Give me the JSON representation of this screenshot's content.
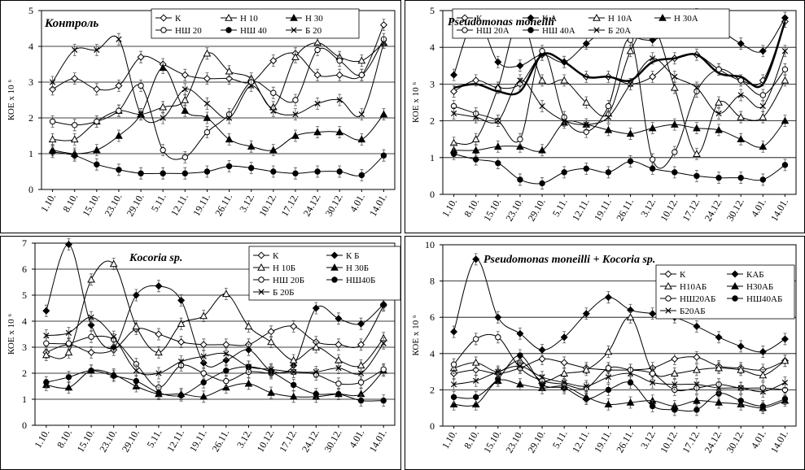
{
  "xticks": [
    "1.10.",
    "8.10.",
    "15.10.",
    "23.10.",
    "29.10.",
    "5.11.",
    "12.11.",
    "19.11.",
    "26.11.",
    "3.12.",
    "10.12.",
    "17.12.",
    "24.12.",
    "30.12.",
    "4.01.",
    "14.01."
  ],
  "ylabel": "КОЕ x 10 ⁶",
  "chart_data": [
    {
      "type": "line",
      "title": "Контроль",
      "ylabel": "КОЕ x 10 ⁶",
      "ylim": [
        0,
        5
      ],
      "yticks": [
        0,
        1,
        2,
        3,
        4,
        5
      ],
      "legend_cols": 3,
      "series": [
        {
          "name": "К",
          "marker": "diamond-open",
          "width": 1,
          "values": [
            2.8,
            3.1,
            2.8,
            2.9,
            3.7,
            3.5,
            3.2,
            3.1,
            3.1,
            3.0,
            3.6,
            3.8,
            3.2,
            3.2,
            3.2,
            4.6
          ]
        },
        {
          "name": "Н 10",
          "marker": "triangle-open",
          "width": 1,
          "values": [
            1.4,
            1.4,
            1.9,
            2.2,
            2.1,
            2.3,
            2.5,
            3.8,
            3.3,
            3.1,
            2.3,
            3.7,
            4.1,
            3.7,
            3.6,
            4.1
          ]
        },
        {
          "name": "Н 30",
          "marker": "triangle-filled",
          "width": 1,
          "values": [
            1.1,
            1.0,
            1.1,
            1.5,
            2.1,
            3.4,
            2.2,
            2.0,
            1.4,
            1.2,
            1.1,
            1.5,
            1.6,
            1.6,
            1.4,
            2.1
          ]
        },
        {
          "name": "НШ 20",
          "marker": "circle-open",
          "width": 1,
          "values": [
            1.9,
            1.8,
            1.9,
            2.2,
            2.9,
            1.1,
            0.9,
            1.6,
            2.1,
            3.0,
            2.7,
            2.5,
            3.9,
            3.6,
            3.2,
            4.2
          ]
        },
        {
          "name": "НШ 40",
          "marker": "circle-filled",
          "width": 1,
          "values": [
            1.05,
            0.95,
            0.7,
            0.55,
            0.45,
            0.45,
            0.45,
            0.5,
            0.65,
            0.6,
            0.5,
            0.45,
            0.5,
            0.5,
            0.4,
            0.95
          ]
        },
        {
          "name": "Б 20",
          "marker": "x",
          "width": 1,
          "values": [
            3.0,
            3.9,
            3.9,
            4.2,
            2.1,
            2.0,
            2.8,
            2.4,
            2.0,
            2.9,
            2.2,
            2.1,
            2.4,
            2.5,
            2.1,
            4.1
          ]
        }
      ]
    },
    {
      "type": "line",
      "title": "Pseudomonas moneilli",
      "ylabel": "КОЕ x 10 ⁶",
      "ylim": [
        0,
        5
      ],
      "yticks": [
        0,
        1,
        2,
        3,
        4,
        5
      ],
      "legend_cols": 4,
      "series": [
        {
          "name": "К",
          "marker": "diamond-open",
          "width": 1,
          "values": [
            2.8,
            3.1,
            2.9,
            3.0,
            3.8,
            3.6,
            3.2,
            3.2,
            3.0,
            3.2,
            3.7,
            3.8,
            3.4,
            3.1,
            3.1,
            4.7
          ]
        },
        {
          "name": "К А",
          "marker": "diamond-filled",
          "width": 1,
          "values": [
            3.25,
            4.8,
            3.6,
            3.5,
            3.8,
            3.6,
            4.1,
            4.5,
            4.3,
            4.2,
            4.5,
            4.9,
            4.5,
            4.1,
            3.9,
            4.8
          ]
        },
        {
          "name": "Н 10А",
          "marker": "triangle-open",
          "width": 1,
          "values": [
            1.4,
            1.5,
            2.9,
            4.8,
            3.1,
            3.1,
            2.5,
            2.2,
            3.9,
            4.6,
            2.9,
            1.1,
            2.5,
            2.1,
            2.1,
            3.1
          ]
        },
        {
          "name": "Н 30А",
          "marker": "triangle-filled",
          "width": 1,
          "values": [
            1.2,
            1.2,
            1.3,
            1.3,
            1.2,
            1.95,
            1.9,
            1.75,
            1.65,
            1.8,
            1.9,
            1.8,
            1.75,
            1.5,
            1.3,
            2.0
          ]
        },
        {
          "name": "НШ 20А",
          "marker": "circle-open",
          "width": 1,
          "values": [
            2.4,
            2.2,
            2.0,
            1.5,
            3.9,
            2.1,
            1.7,
            2.4,
            4.2,
            0.95,
            1.15,
            2.8,
            3.4,
            3.1,
            2.7,
            3.4
          ]
        },
        {
          "name": "НШ 40А",
          "marker": "circle-filled",
          "width": 1,
          "values": [
            1.1,
            0.95,
            0.85,
            0.4,
            0.3,
            0.6,
            0.7,
            0.6,
            0.9,
            0.7,
            0.6,
            0.5,
            0.45,
            0.45,
            0.4,
            0.8
          ]
        },
        {
          "name": "Б 20А",
          "marker": "x",
          "width": 1,
          "values": [
            2.2,
            2.1,
            2.0,
            3.1,
            2.4,
            2.0,
            1.9,
            2.1,
            3.0,
            3.7,
            3.2,
            2.9,
            2.2,
            2.7,
            2.4,
            3.9
          ]
        },
        {
          "name": "",
          "marker": "none",
          "width": 2.5,
          "values": [
            2.9,
            3.0,
            2.8,
            2.8,
            3.8,
            3.6,
            3.2,
            3.2,
            3.1,
            3.6,
            3.7,
            3.8,
            3.3,
            3.2,
            3.0,
            4.7
          ]
        }
      ]
    },
    {
      "type": "line",
      "title": "Kocoria sp.",
      "ylabel": "КОЕ x 10 ⁶",
      "ylim": [
        0,
        7
      ],
      "yticks": [
        0,
        1,
        2,
        3,
        4,
        5,
        6,
        7
      ],
      "legend_cols": 2,
      "series": [
        {
          "name": "К",
          "marker": "diamond-open",
          "width": 1,
          "values": [
            2.8,
            3.1,
            2.8,
            2.9,
            3.7,
            3.5,
            3.2,
            3.1,
            3.1,
            3.1,
            3.6,
            3.8,
            3.2,
            3.1,
            3.1,
            4.6
          ]
        },
        {
          "name": "К Б",
          "marker": "diamond-filled",
          "width": 1,
          "values": [
            4.4,
            6.95,
            3.85,
            3.0,
            5.0,
            5.35,
            4.8,
            2.4,
            2.5,
            2.9,
            2.1,
            2.3,
            4.5,
            4.1,
            3.9,
            4.65
          ]
        },
        {
          "name": "Н 10Б",
          "marker": "triangle-open",
          "width": 1,
          "values": [
            2.7,
            2.8,
            5.6,
            6.2,
            3.8,
            2.8,
            3.9,
            4.2,
            5.05,
            3.8,
            3.2,
            2.5,
            3.0,
            2.5,
            2.3,
            3.35
          ]
        },
        {
          "name": "Н 30Б",
          "marker": "triangle-filled",
          "width": 1,
          "values": [
            1.55,
            1.45,
            2.1,
            1.95,
            1.5,
            1.2,
            1.2,
            1.1,
            1.45,
            1.6,
            1.25,
            1.1,
            1.1,
            1.2,
            1.2,
            2.1
          ]
        },
        {
          "name": "НШ 20Б",
          "marker": "circle-open",
          "width": 1,
          "values": [
            3.15,
            3.15,
            3.4,
            3.3,
            2.35,
            1.45,
            2.3,
            2.0,
            1.7,
            2.05,
            2.0,
            2.05,
            1.95,
            1.6,
            1.65,
            2.15
          ]
        },
        {
          "name": "НШ40Б",
          "marker": "circle-filled",
          "width": 1,
          "values": [
            1.65,
            1.85,
            2.1,
            1.9,
            1.7,
            1.25,
            1.15,
            1.65,
            2.1,
            2.25,
            2.05,
            1.55,
            1.2,
            1.2,
            0.95,
            0.95
          ]
        },
        {
          "name": "Б 20Б",
          "marker": "x",
          "width": 1,
          "values": [
            3.45,
            3.55,
            4.15,
            3.4,
            2.1,
            2.0,
            2.45,
            2.65,
            2.75,
            2.25,
            2.15,
            2.05,
            2.05,
            2.2,
            2.0,
            3.15
          ]
        }
      ]
    },
    {
      "type": "line",
      "title": "Pseudomonas moneilli + Kocoria sp.",
      "ylabel": "КОЕ x 10 ⁶",
      "ylim": [
        0,
        10
      ],
      "yticks": [
        0,
        2,
        4,
        6,
        8,
        10
      ],
      "legend_cols": 2,
      "series": [
        {
          "name": "К",
          "marker": "diamond-open",
          "width": 1,
          "values": [
            2.9,
            3.1,
            2.9,
            3.2,
            3.7,
            3.5,
            3.2,
            3.1,
            3.1,
            3.2,
            3.7,
            3.8,
            3.3,
            3.2,
            3.1,
            3.6
          ]
        },
        {
          "name": "КАБ",
          "marker": "diamond-filled",
          "width": 1,
          "values": [
            5.2,
            9.2,
            6.0,
            5.1,
            4.2,
            4.9,
            6.2,
            7.1,
            6.4,
            6.2,
            6.0,
            5.5,
            4.9,
            4.4,
            4.1,
            4.8
          ]
        },
        {
          "name": "Н10АБ",
          "marker": "triangle-open",
          "width": 1,
          "values": [
            3.2,
            3.5,
            3.0,
            3.6,
            2.5,
            2.9,
            3.1,
            4.1,
            6.0,
            3.0,
            2.9,
            3.1,
            3.2,
            3.1,
            2.8,
            3.6
          ]
        },
        {
          "name": "Н30АБ",
          "marker": "triangle-filled",
          "width": 1,
          "values": [
            1.2,
            1.2,
            2.5,
            2.3,
            2.1,
            2.2,
            1.6,
            1.2,
            1.3,
            1.4,
            1.1,
            1.4,
            1.3,
            1.2,
            1.0,
            1.4
          ]
        },
        {
          "name": "НШ20АБ",
          "marker": "circle-open",
          "width": 1,
          "values": [
            3.4,
            4.8,
            4.9,
            3.2,
            2.5,
            2.3,
            2.1,
            3.2,
            3.1,
            2.9,
            2.0,
            2.1,
            2.3,
            2.1,
            2.1,
            2.0
          ]
        },
        {
          "name": "НШ40АБ",
          "marker": "circle-filled",
          "width": 1,
          "values": [
            1.6,
            1.6,
            2.6,
            3.9,
            2.3,
            2.1,
            1.5,
            2.0,
            2.4,
            1.1,
            0.9,
            0.9,
            1.8,
            1.4,
            1.1,
            1.5
          ]
        },
        {
          "name": "Б20АБ",
          "marker": "x",
          "width": 1,
          "values": [
            2.3,
            2.5,
            3.0,
            3.3,
            2.7,
            2.4,
            2.2,
            2.7,
            2.9,
            2.4,
            2.3,
            2.3,
            2.1,
            2.1,
            1.9,
            2.4
          ]
        }
      ]
    }
  ]
}
